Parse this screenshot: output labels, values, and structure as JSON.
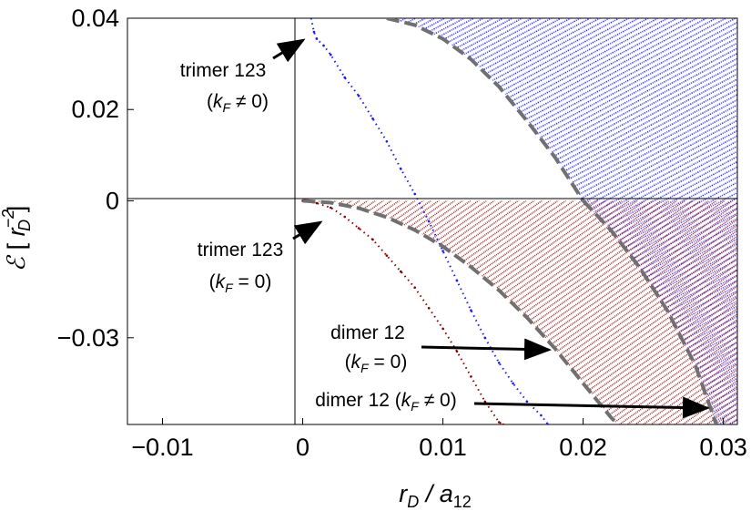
{
  "chart_data": {
    "type": "scatter",
    "xlabel": "r_D / a_12",
    "ylabel": "ℰ [ r_D^-2 ]",
    "xlim": [
      -0.0125,
      0.031
    ],
    "ylim": [
      -0.049,
      0.04
    ],
    "x_ticks": [
      -0.01,
      0,
      0.01,
      0.02,
      0.03
    ],
    "x_tick_labels": [
      "−0.01",
      "0",
      "0.01",
      "0.02",
      "0.03"
    ],
    "y_ticks": [
      0.04,
      0.02,
      0,
      -0.03
    ],
    "y_tick_labels": [
      "0.04",
      "0.02",
      "0",
      "−0.03"
    ],
    "grid": false,
    "colors": {
      "blue": "#1a1aff",
      "red": "#8b0000",
      "dashed": "#707070"
    },
    "series": [
      {
        "color": "blue",
        "x": [
          0.0006,
          0.0008,
          0.001,
          0.0015,
          0.002,
          0.003,
          0.004,
          0.005,
          0.006,
          0.007,
          0.008,
          0.009,
          0.01,
          0.011,
          0.012,
          0.013,
          0.014,
          0.015,
          0.016,
          0.017,
          0.0175
        ],
        "y": [
          0.04,
          0.037,
          0.0355,
          0.034,
          0.032,
          0.027,
          0.023,
          0.018,
          0.013,
          0.007,
          0.0015,
          -0.0045,
          -0.011,
          -0.0175,
          -0.024,
          -0.03,
          -0.0355,
          -0.04,
          -0.044,
          -0.047,
          -0.049
        ]
      },
      {
        "color": "red",
        "x": [
          0,
          0.001,
          0.002,
          0.003,
          0.004,
          0.005,
          0.006,
          0.007,
          0.008,
          0.009,
          0.01,
          0.011,
          0.012,
          0.013,
          0.014,
          0.0143
        ],
        "y": [
          0,
          -0.0005,
          -0.0015,
          -0.0035,
          -0.006,
          -0.0085,
          -0.012,
          -0.0155,
          -0.019,
          -0.0235,
          -0.028,
          -0.033,
          -0.0385,
          -0.044,
          -0.0485,
          -0.049
        ]
      },
      {
        "color": "dashed",
        "x": [
          0.006,
          0.008,
          0.01,
          0.012,
          0.014,
          0.016,
          0.018,
          0.02
        ],
        "y": [
          0.04,
          0.0385,
          0.0355,
          0.031,
          0.025,
          0.0175,
          0.0095,
          0.0
        ]
      },
      {
        "color": "dashed",
        "x": [
          0,
          0.002,
          0.004,
          0.006,
          0.008,
          0.01,
          0.012,
          0.014,
          0.016,
          0.018,
          0.02,
          0.022,
          0.0225
        ],
        "y": [
          0,
          -0.0004,
          -0.0016,
          -0.0036,
          -0.0064,
          -0.01,
          -0.0145,
          -0.0196,
          -0.0256,
          -0.0324,
          -0.04,
          -0.0475,
          -0.049
        ]
      },
      {
        "color": "dashed",
        "x": [
          0.02,
          0.022,
          0.024,
          0.026,
          0.028,
          0.0295
        ],
        "y": [
          0,
          -0.0065,
          -0.0145,
          -0.024,
          -0.036,
          -0.049
        ]
      }
    ],
    "annotations": [
      {
        "label": "trimer 123",
        "sub": "(k_F ≠ 0)"
      },
      {
        "label": "trimer 123",
        "sub": "(k_F = 0)"
      },
      {
        "label": "dimer 12",
        "sub": "(k_F = 0)"
      },
      {
        "label": "dimer 12 (k_F ≠ 0)",
        "sub": ""
      }
    ]
  }
}
